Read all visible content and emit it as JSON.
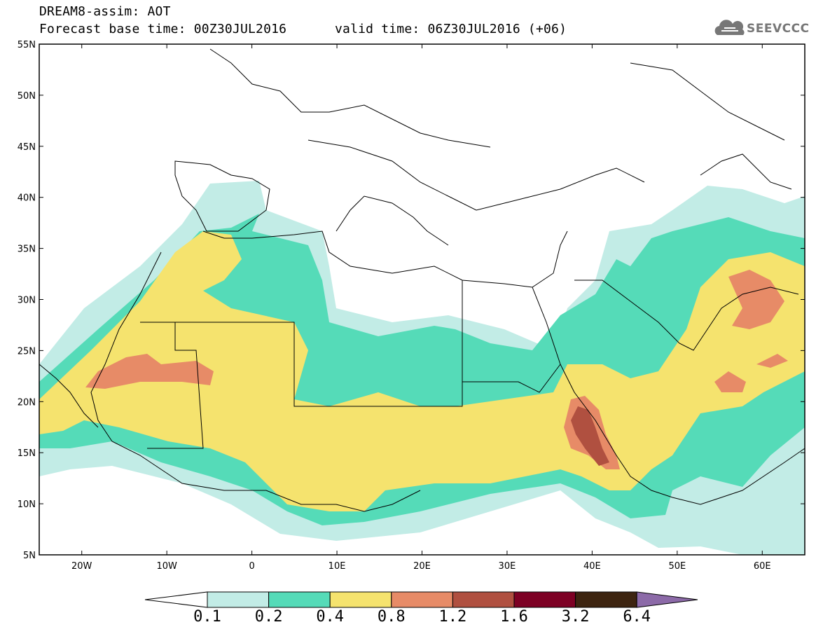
{
  "title": {
    "line1": "DREAM8-assim: AOT",
    "line2": "Forecast base time: 00Z30JUL2016",
    "line3": "valid time: 06Z30JUL2016 (+06)"
  },
  "logo": {
    "text": "SEEVCCC",
    "icon": "cloud-icon"
  },
  "axes": {
    "lat_labels": [
      "55N",
      "50N",
      "45N",
      "40N",
      "35N",
      "30N",
      "25N",
      "20N",
      "15N",
      "10N",
      "5N"
    ],
    "lat_values": [
      55,
      50,
      45,
      40,
      35,
      30,
      25,
      20,
      15,
      10,
      5
    ],
    "lon_labels": [
      "20W",
      "10W",
      "0",
      "10E",
      "20E",
      "30E",
      "40E",
      "50E",
      "60E"
    ],
    "lon_values": [
      -20,
      -10,
      0,
      10,
      20,
      30,
      40,
      50,
      60
    ],
    "lon_range": [
      -25,
      65
    ],
    "lat_range": [
      5,
      55
    ]
  },
  "colorbar": {
    "labels": [
      "0.1",
      "0.2",
      "0.4",
      "0.8",
      "1.2",
      "1.6",
      "3.2",
      "6.4"
    ],
    "colors": [
      "#ffffff",
      "#c2ece6",
      "#55dbb8",
      "#f5e36e",
      "#e78b67",
      "#b05040",
      "#7d0024",
      "#3d2410",
      "#8c6aa8"
    ]
  },
  "field_colors": {
    "aot_0_1": "#c2ece6",
    "aot_0_2": "#55dbb8",
    "aot_0_4": "#f5e36e",
    "aot_0_8": "#e78b67",
    "aot_1_2": "#b05040"
  }
}
